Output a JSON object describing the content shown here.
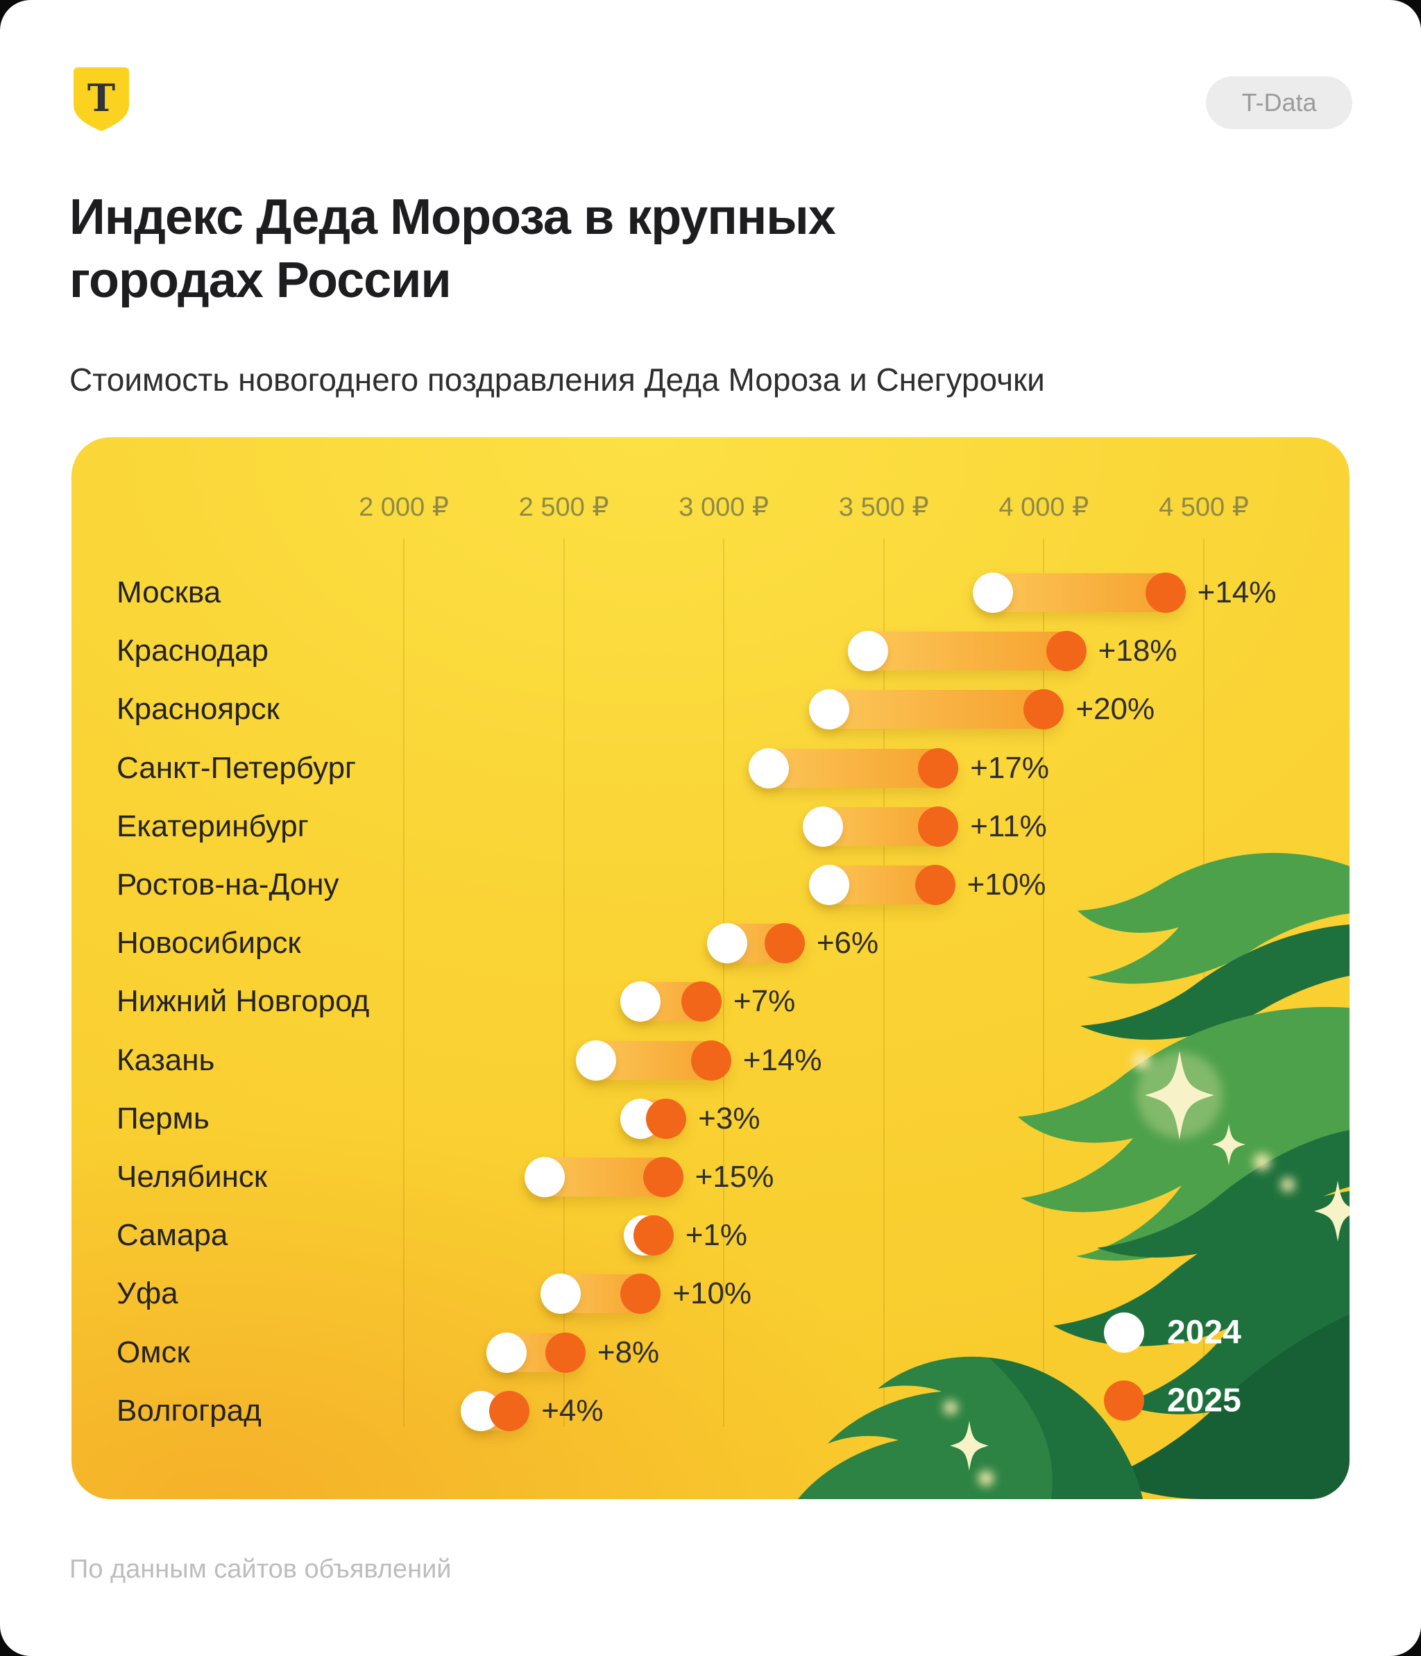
{
  "header": {
    "logo_letter": "T",
    "badge_label": "T-Data"
  },
  "title": {
    "line1": "Индекс Деда Мороза в крупных",
    "line2": "городах России"
  },
  "subtitle": "Стоимость новогоднего поздравления Деда Мороза и Снегурочки",
  "source_note": "По данным сайтов объявлений",
  "chart_data": {
    "type": "dumbbell",
    "title": "Индекс Деда Мороза в крупных городах России",
    "subtitle": "Стоимость новогоднего поздравления Деда Мороза и Снегурочки",
    "unit": "₽",
    "x_axis": {
      "min": 2000,
      "max": 4500,
      "ticks": [
        2000,
        2500,
        3000,
        3500,
        4000,
        4500
      ],
      "tick_labels": [
        "2 000 ₽",
        "2 500 ₽",
        "3 000 ₽",
        "3 500 ₽",
        "4 000 ₽",
        "4 500 ₽"
      ],
      "grid": true
    },
    "legend": [
      {
        "label": "2024",
        "color": "#ffffff"
      },
      {
        "label": "2025",
        "color": "#f2661a"
      }
    ],
    "legend_position": "bottom-right",
    "values_estimated_from_gridlines": true,
    "rows": [
      {
        "city": "Москва",
        "value_2024": 3840,
        "value_2025": 4380,
        "change_label": "+14%"
      },
      {
        "city": "Краснодар",
        "value_2024": 3450,
        "value_2025": 4070,
        "change_label": "+18%"
      },
      {
        "city": "Красноярск",
        "value_2024": 3330,
        "value_2025": 4000,
        "change_label": "+20%"
      },
      {
        "city": "Санкт-Петербург",
        "value_2024": 3140,
        "value_2025": 3670,
        "change_label": "+17%"
      },
      {
        "city": "Екатеринбург",
        "value_2024": 3310,
        "value_2025": 3670,
        "change_label": "+11%"
      },
      {
        "city": "Ростов-на-Дону",
        "value_2024": 3330,
        "value_2025": 3660,
        "change_label": "+10%"
      },
      {
        "city": "Новосибирск",
        "value_2024": 3010,
        "value_2025": 3190,
        "change_label": "+6%"
      },
      {
        "city": "Нижний Новгород",
        "value_2024": 2740,
        "value_2025": 2930,
        "change_label": "+7%"
      },
      {
        "city": "Казань",
        "value_2024": 2600,
        "value_2025": 2960,
        "change_label": "+14%"
      },
      {
        "city": "Пермь",
        "value_2024": 2740,
        "value_2025": 2820,
        "change_label": "+3%"
      },
      {
        "city": "Челябинск",
        "value_2024": 2440,
        "value_2025": 2810,
        "change_label": "+15%"
      },
      {
        "city": "Самара",
        "value_2024": 2750,
        "value_2025": 2780,
        "change_label": "+1%"
      },
      {
        "city": "Уфа",
        "value_2024": 2490,
        "value_2025": 2740,
        "change_label": "+10%"
      },
      {
        "city": "Омск",
        "value_2024": 2320,
        "value_2025": 2505,
        "change_label": "+8%"
      },
      {
        "city": "Волгоград",
        "value_2024": 2240,
        "value_2025": 2330,
        "change_label": "+4%"
      }
    ]
  },
  "colors": {
    "card_yellow": "#f9cf2e",
    "dot_2024": "#ffffff",
    "dot_2025": "#f2661a",
    "band_from": "#fcc95a",
    "band_to": "#f69f2c",
    "axis_label": "#8d8a47",
    "tree_green_light": "#4da14b",
    "tree_green_mid": "#2c8343",
    "tree_green_dark": "#1e713c",
    "tree_green_deep": "#175f34",
    "sparkle": "#f8f2c8"
  }
}
